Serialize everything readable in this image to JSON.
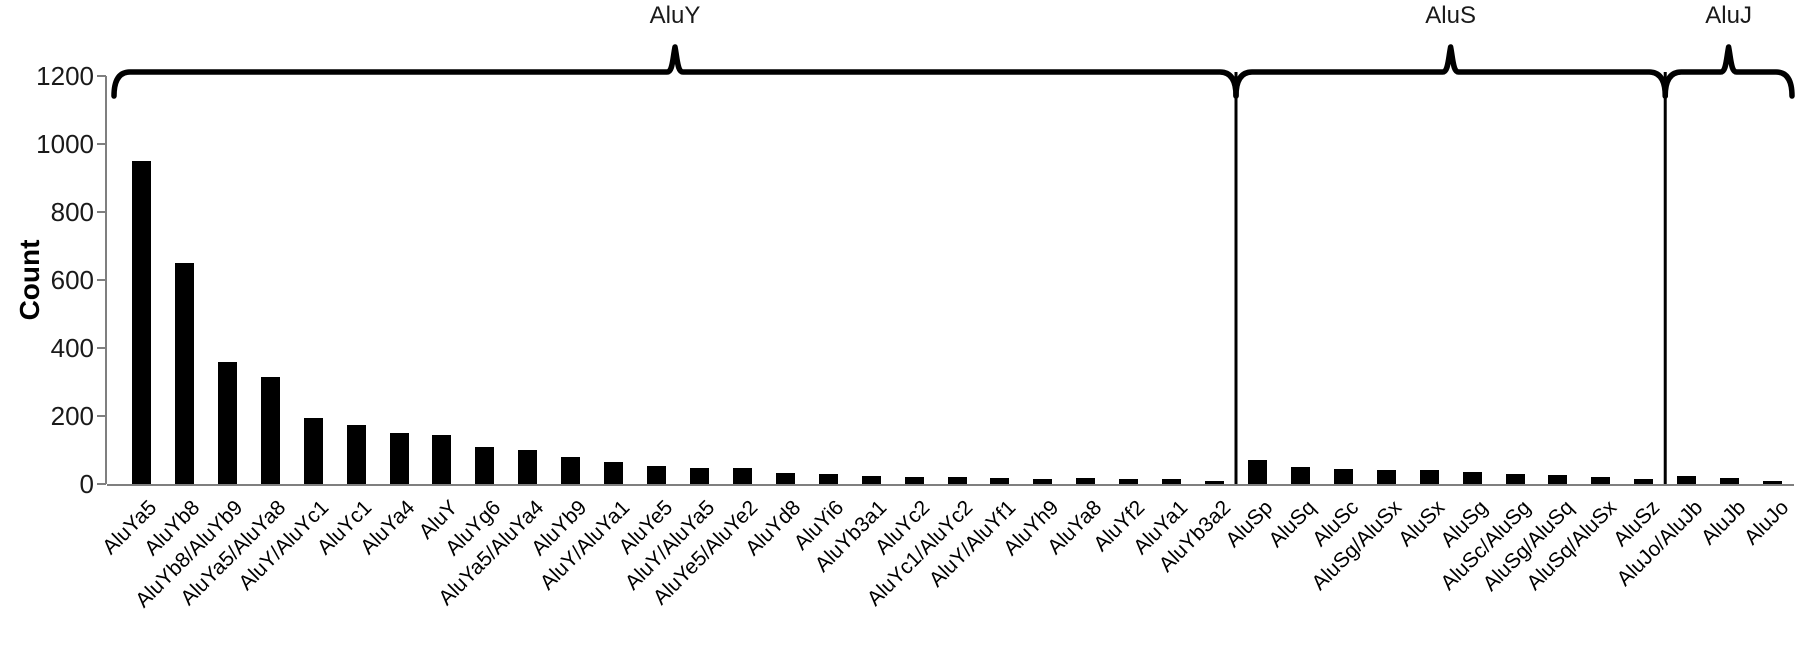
{
  "chart_data": {
    "type": "bar",
    "title": "",
    "xlabel": "",
    "ylabel": "Count",
    "ylim": [
      0,
      1200
    ],
    "y_ticks": [
      0,
      200,
      400,
      600,
      800,
      1000,
      1200
    ],
    "grid": false,
    "legend": "none",
    "bar_color": "#000000",
    "axis_color": "#7f7f7f",
    "annotation_color": "#000000",
    "categories": [
      "AluYa5",
      "AluYb8",
      "AluYb8/AluYb9",
      "AluYa5/AluYa8",
      "AluY/AluYc1",
      "AluYc1",
      "AluYa4",
      "AluY",
      "AluYg6",
      "AluYa5/AluYa4",
      "AluYb9",
      "AluY/AluYa1",
      "AluYe5",
      "AluY/AluYa5",
      "AluYe5/AluYe2",
      "AluYd8",
      "AluYi6",
      "AluYb3a1",
      "AluYc2",
      "AluYc1/AluYc2",
      "AluY/AluYf1",
      "AluYh9",
      "AluYa8",
      "AluYf2",
      "AluYa1",
      "AluYb3a2",
      "AluSp",
      "AluSq",
      "AluSc",
      "AluSg/AluSx",
      "AluSx",
      "AluSg",
      "AluSc/AluSg",
      "AluSg/AluSq",
      "AluSq/AluSx",
      "AluSz",
      "AluJo/AluJb",
      "AluJb",
      "AluJo"
    ],
    "values": [
      950,
      650,
      360,
      315,
      195,
      175,
      150,
      145,
      110,
      100,
      80,
      65,
      52,
      48,
      48,
      33,
      28,
      23,
      22,
      20,
      18,
      16,
      17,
      15,
      14,
      10,
      70,
      50,
      45,
      42,
      40,
      34,
      30,
      27,
      20,
      15,
      25,
      18,
      10
    ],
    "groups": [
      {
        "label": "AluY",
        "start": 0,
        "end": 25
      },
      {
        "label": "AluS",
        "start": 26,
        "end": 35
      },
      {
        "label": "AluJ",
        "start": 36,
        "end": 38
      }
    ]
  }
}
